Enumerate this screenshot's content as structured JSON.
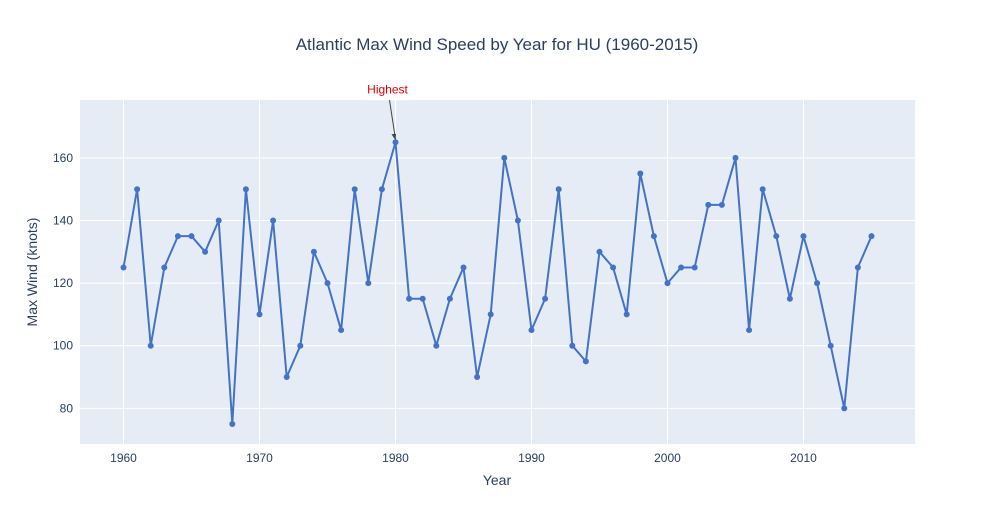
{
  "chart_data": {
    "type": "line",
    "title": "Atlantic Max Wind Speed by Year for HU (1960-2015)",
    "xlabel": "Year",
    "ylabel": "Max Wind (knots)",
    "xlim": [
      1956.8,
      2018.2
    ],
    "ylim": [
      68.6,
      178.5
    ],
    "xticks": [
      1960,
      1970,
      1980,
      1990,
      2000,
      2010
    ],
    "yticks": [
      80,
      100,
      120,
      140,
      160
    ],
    "grid": true,
    "legend": "none",
    "colors": {
      "plot_bg": "#e5ecf6",
      "grid": "#ffffff",
      "line": "#4472c4",
      "annotation_text": "#e00000"
    },
    "series": [
      {
        "x": [
          1960,
          1961,
          1962,
          1963,
          1964,
          1965,
          1966,
          1967,
          1968,
          1969,
          1970,
          1971,
          1972,
          1973,
          1974,
          1975,
          1976,
          1977,
          1978,
          1979,
          1980,
          1981,
          1982,
          1983,
          1984,
          1985,
          1986,
          1987,
          1988,
          1989,
          1990,
          1991,
          1992,
          1993,
          1994,
          1995,
          1996,
          1997,
          1998,
          1999,
          2000,
          2001,
          2002,
          2003,
          2004,
          2005,
          2006,
          2007,
          2008,
          2009,
          2010,
          2011,
          2012,
          2013,
          2014,
          2015
        ],
        "values": [
          125,
          150,
          100,
          125,
          135,
          135,
          130,
          140,
          75,
          150,
          110,
          140,
          90,
          100,
          130,
          120,
          105,
          150,
          120,
          150,
          165,
          115,
          115,
          100,
          115,
          125,
          90,
          110,
          160,
          140,
          105,
          115,
          150,
          100,
          95,
          130,
          125,
          110,
          155,
          135,
          120,
          125,
          125,
          145,
          145,
          160,
          105,
          150,
          135,
          115,
          135,
          120,
          100,
          80,
          125,
          135
        ]
      }
    ],
    "annotations": [
      {
        "text": "Highest",
        "x": 1980,
        "y": 165
      }
    ]
  }
}
